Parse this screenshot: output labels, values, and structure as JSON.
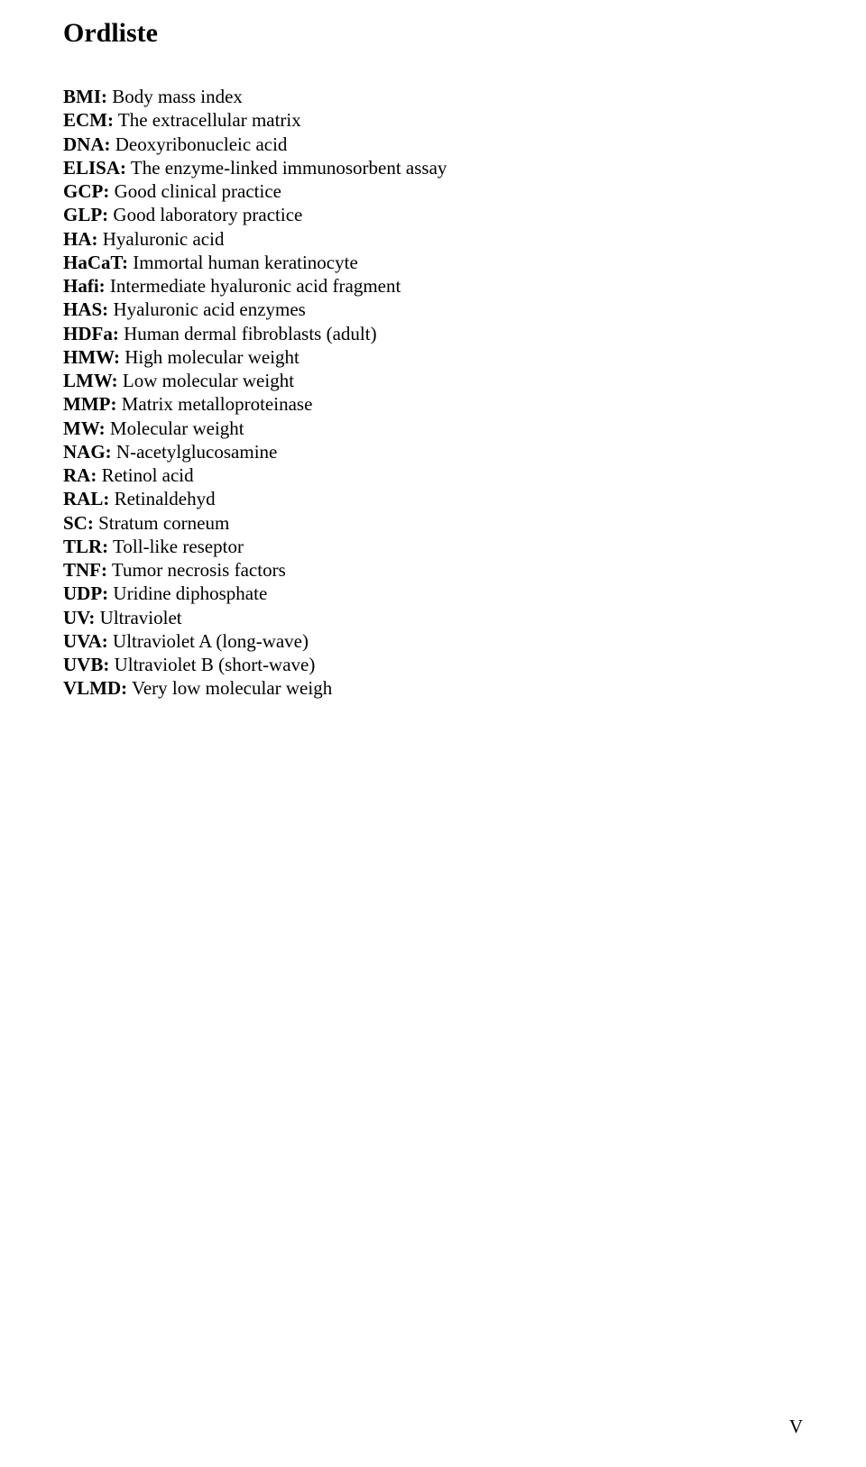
{
  "title": "Ordliste",
  "entries": [
    {
      "term": "BMI:",
      "def": " Body mass index"
    },
    {
      "term": "ECM:",
      "def": " The extracellular matrix"
    },
    {
      "term": "DNA:",
      "def": " Deoxyribonucleic acid"
    },
    {
      "term": "ELISA:",
      "def": " The enzyme-linked immunosorbent assay"
    },
    {
      "term": "GCP:",
      "def": " Good clinical practice"
    },
    {
      "term": "GLP:",
      "def": " Good laboratory practice"
    },
    {
      "term": "HA:",
      "def": " Hyaluronic acid"
    },
    {
      "term": "HaCaT:",
      "def": " Immortal human keratinocyte"
    },
    {
      "term": "Hafi:",
      "def": " Intermediate hyaluronic acid fragment"
    },
    {
      "term": "HAS:",
      "def": " Hyaluronic acid enzymes"
    },
    {
      "term": "HDFa:",
      "def": " Human dermal fibroblasts (adult)"
    },
    {
      "term": "HMW:",
      "def": " High molecular weight"
    },
    {
      "term": "LMW:",
      "def": " Low molecular weight"
    },
    {
      "term": "MMP:",
      "def": " Matrix metalloproteinase"
    },
    {
      "term": "MW:",
      "def": " Molecular weight"
    },
    {
      "term": "NAG:",
      "def": " N-acetylglucosamine"
    },
    {
      "term": "RA:",
      "def": " Retinol acid"
    },
    {
      "term": "RAL:",
      "def": " Retinaldehyd"
    },
    {
      "term": "SC:",
      "def": " Stratum corneum"
    },
    {
      "term": "TLR:",
      "def": " Toll-like reseptor"
    },
    {
      "term": "TNF:",
      "def": " Tumor necrosis factors"
    },
    {
      "term": "UDP:",
      "def": " Uridine diphosphate"
    },
    {
      "term": "UV:",
      "def": " Ultraviolet"
    },
    {
      "term": "UVA:",
      "def": " Ultraviolet A (long-wave)"
    },
    {
      "term": "UVB:",
      "def": " Ultraviolet B (short-wave)"
    },
    {
      "term": "VLMD:",
      "def": " Very low molecular weigh"
    }
  ],
  "page_number": "V",
  "colors": {
    "background": "#ffffff",
    "text": "#000000"
  },
  "typography": {
    "title_fontsize": 30,
    "body_fontsize": 21,
    "font_family": "Georgia, Times New Roman, serif"
  }
}
